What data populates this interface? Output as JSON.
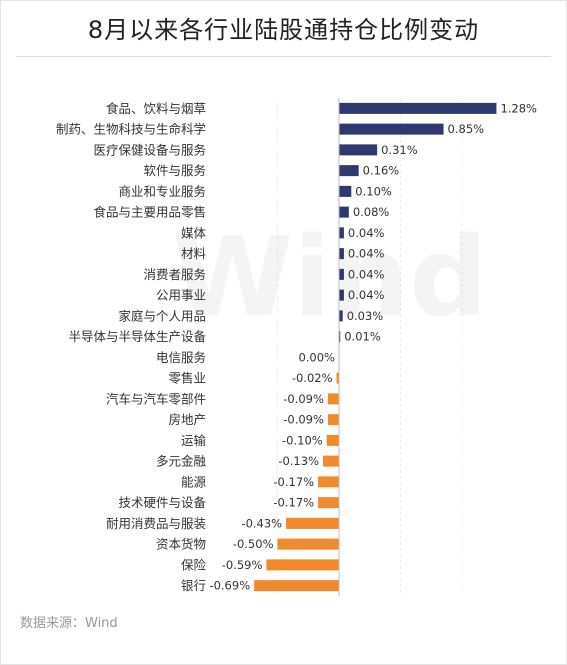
{
  "title": "8月以来各行业陆股通持仓比例变动",
  "source": "数据来源：Wind",
  "watermark": "Wind",
  "colors": {
    "positive": "#2e3a6e",
    "negative": "#f08a2c",
    "text": "#333333"
  },
  "chart_data": {
    "type": "bar",
    "orientation": "horizontal",
    "title": "8月以来各行业陆股通持仓比例变动",
    "categories": [
      "食品、饮料与烟草",
      "制药、生物科技与生命科学",
      "医疗保健设备与服务",
      "软件与服务",
      "商业和专业服务",
      "食品与主要用品零售",
      "媒体",
      "材料",
      "消费者服务",
      "公用事业",
      "家庭与个人用品",
      "半导体与半导体生产设备",
      "电信服务",
      "零售业",
      "汽车与汽车零部件",
      "房地产",
      "运输",
      "多元金融",
      "能源",
      "技术硬件与设备",
      "耐用消费品与服装",
      "资本货物",
      "保险",
      "银行"
    ],
    "values": [
      1.28,
      0.85,
      0.31,
      0.16,
      0.1,
      0.08,
      0.04,
      0.04,
      0.04,
      0.04,
      0.03,
      0.01,
      0.0,
      -0.02,
      -0.09,
      -0.09,
      -0.1,
      -0.13,
      -0.17,
      -0.17,
      -0.43,
      -0.5,
      -0.59,
      -0.69
    ],
    "value_labels": [
      "1.28%",
      "0.85%",
      "0.31%",
      "0.16%",
      "0.10%",
      "0.08%",
      "0.04%",
      "0.04%",
      "0.04%",
      "0.04%",
      "0.03%",
      "0.01%",
      "0.00%",
      "-0.02%",
      "-0.09%",
      "-0.09%",
      "-0.10%",
      "-0.13%",
      "-0.17%",
      "-0.17%",
      "-0.43%",
      "-0.50%",
      "-0.59%",
      "-0.69%"
    ],
    "unit": "%",
    "grid": true,
    "legend": "none"
  }
}
